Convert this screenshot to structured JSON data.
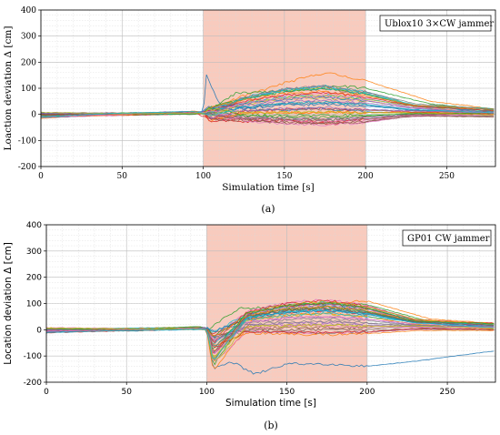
{
  "chart_data": [
    {
      "type": "line",
      "panel_caption": "(a)",
      "annotation": "Ublox10 3×CW jammer",
      "xlabel": "Simulation time [s]",
      "ylabel": "Loaction deviation Δ [cm]",
      "xlim": [
        0,
        280
      ],
      "ylim": [
        -200,
        400
      ],
      "xticks": [
        0,
        50,
        100,
        150,
        200,
        250
      ],
      "yticks": [
        -200,
        -100,
        0,
        100,
        200,
        300,
        400
      ],
      "jamming_interval": [
        100,
        200
      ],
      "jamming_color": "#f8cbbe",
      "grid": true,
      "series_count": 40,
      "series": [
        {
          "x": [
            0,
            50,
            95,
            100,
            102,
            110,
            130,
            150,
            170,
            200,
            230,
            280
          ],
          "y": [
            -10,
            0,
            8,
            10,
            150,
            40,
            20,
            15,
            25,
            10,
            5,
            0
          ]
        },
        {
          "x": [
            0,
            50,
            95,
            100,
            120,
            150,
            175,
            200,
            240,
            280
          ],
          "y": [
            -15,
            2,
            10,
            5,
            60,
            120,
            160,
            130,
            50,
            20
          ]
        },
        {
          "x": [
            0,
            50,
            95,
            100,
            120,
            150,
            180,
            200,
            240,
            280
          ],
          "y": [
            -12,
            1,
            9,
            0,
            80,
            90,
            110,
            100,
            40,
            15
          ]
        },
        {
          "x": [
            0,
            50,
            95,
            100,
            120,
            150,
            180,
            200,
            240,
            280
          ],
          "y": [
            -8,
            3,
            6,
            -10,
            -30,
            -20,
            -40,
            -10,
            0,
            5
          ]
        }
      ]
    },
    {
      "type": "line",
      "panel_caption": "(b)",
      "annotation": "GP01 CW jammer",
      "xlabel": "Simulation time [s]",
      "ylabel": "Location deviation Δ [cm]",
      "xlim": [
        0,
        280
      ],
      "ylim": [
        -200,
        400
      ],
      "xticks": [
        0,
        50,
        100,
        150,
        200,
        250
      ],
      "yticks": [
        -200,
        -100,
        0,
        100,
        200,
        300,
        400
      ],
      "jamming_interval": [
        100,
        200
      ],
      "jamming_color": "#f8cbbe",
      "grid": true,
      "series_count": 40,
      "series": [
        {
          "x": [
            0,
            50,
            95,
            100,
            104,
            115,
            130,
            150,
            175,
            200,
            230,
            280
          ],
          "y": [
            5,
            -5,
            2,
            0,
            -150,
            -120,
            -170,
            -130,
            -130,
            -140,
            -120,
            -80
          ]
        },
        {
          "x": [
            0,
            50,
            95,
            100,
            104,
            130,
            160,
            200,
            240,
            280
          ],
          "y": [
            8,
            -3,
            3,
            0,
            -160,
            50,
            100,
            110,
            40,
            25
          ]
        },
        {
          "x": [
            0,
            50,
            95,
            100,
            120,
            150,
            180,
            200,
            240,
            280
          ],
          "y": [
            6,
            -4,
            4,
            0,
            80,
            90,
            100,
            95,
            30,
            20
          ]
        }
      ]
    }
  ]
}
